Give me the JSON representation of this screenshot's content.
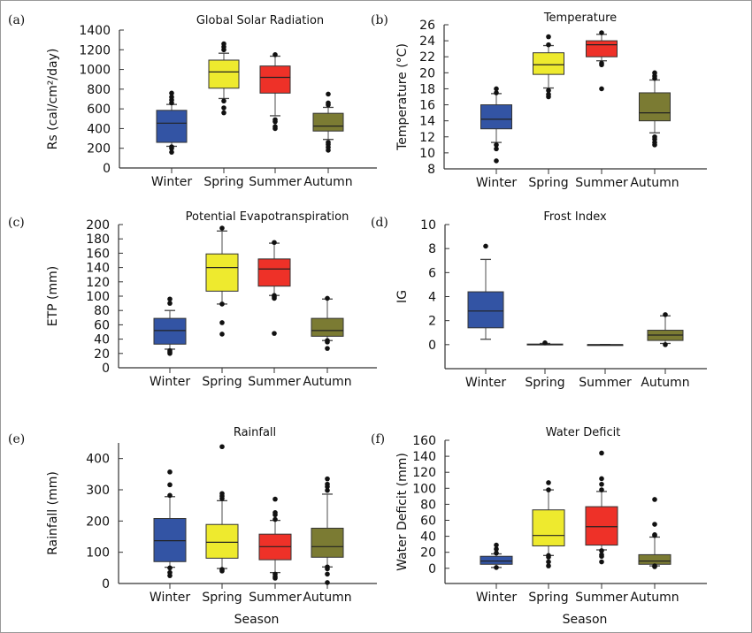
{
  "colors": {
    "Winter": "#3354a4",
    "Spring": "#eeea2e",
    "Summer": "#ee3128",
    "Autumn": "#7b7b33",
    "whisker": "#777777",
    "outlier": "#111111"
  },
  "chart_data": [
    {
      "panel": "(a)",
      "type": "box",
      "title": "Global Solar Radiation",
      "xlabel": "",
      "ylabel": "Rs (cal/cm²/day)",
      "categories": [
        "Winter",
        "Spring",
        "Summer",
        "Autumn"
      ],
      "ylim": [
        0,
        1400
      ],
      "yticks": [
        0,
        200,
        400,
        600,
        800,
        1000,
        1200,
        1400
      ],
      "boxes": [
        {
          "q1": 260,
          "median": 455,
          "q3": 585,
          "whisker_low": 220,
          "whisker_high": 645,
          "outliers": [
            160,
            200,
            215,
            660,
            690,
            720,
            760
          ]
        },
        {
          "q1": 810,
          "median": 975,
          "q3": 1095,
          "whisker_low": 705,
          "whisker_high": 1165,
          "outliers": [
            560,
            610,
            680,
            1200,
            1230,
            1260
          ]
        },
        {
          "q1": 760,
          "median": 920,
          "q3": 1035,
          "whisker_low": 530,
          "whisker_high": 1135,
          "outliers": [
            400,
            420,
            470,
            490,
            1150
          ]
        },
        {
          "q1": 375,
          "median": 425,
          "q3": 555,
          "whisker_low": 290,
          "whisker_high": 615,
          "outliers": [
            180,
            210,
            240,
            260,
            640,
            660,
            750
          ]
        }
      ]
    },
    {
      "panel": "(b)",
      "type": "box",
      "title": "Temperature",
      "xlabel": "",
      "ylabel": "Temperature (°C)",
      "categories": [
        "Winter",
        "Spring",
        "Summer",
        "Autumn"
      ],
      "ylim": [
        8,
        26
      ],
      "yticks": [
        8,
        10,
        12,
        14,
        16,
        18,
        20,
        22,
        24,
        26
      ],
      "boxes": [
        {
          "q1": 13,
          "median": 14.2,
          "q3": 16,
          "whisker_low": 11.3,
          "whisker_high": 17.4,
          "outliers": [
            9,
            10.5,
            11,
            17.5,
            18
          ]
        },
        {
          "q1": 19.8,
          "median": 21,
          "q3": 22.5,
          "whisker_low": 18.1,
          "whisker_high": 23.4,
          "outliers": [
            17,
            17.3,
            17.8,
            23.5,
            24.5
          ]
        },
        {
          "q1": 22,
          "median": 23.5,
          "q3": 24,
          "whisker_low": 21.5,
          "whisker_high": 24.8,
          "outliers": [
            18,
            21,
            21.2,
            25
          ]
        },
        {
          "q1": 14,
          "median": 15,
          "q3": 17.5,
          "whisker_low": 12.5,
          "whisker_high": 19.1,
          "outliers": [
            11,
            11.3,
            11.7,
            12,
            19.3,
            19.6,
            20
          ]
        }
      ]
    },
    {
      "panel": "(c)",
      "type": "box",
      "title": "Potential Evapotranspiration",
      "xlabel": "",
      "ylabel": "ETP (mm)",
      "categories": [
        "Winter",
        "Spring",
        "Summer",
        "Autumn"
      ],
      "ylim": [
        0,
        200
      ],
      "yticks": [
        0,
        20,
        40,
        60,
        80,
        100,
        120,
        140,
        160,
        180,
        200
      ],
      "boxes": [
        {
          "q1": 33,
          "median": 52,
          "q3": 69,
          "whisker_low": 26,
          "whisker_high": 80,
          "outliers": [
            20,
            22,
            24,
            90,
            96
          ]
        },
        {
          "q1": 107,
          "median": 140,
          "q3": 159,
          "whisker_low": 89,
          "whisker_high": 191,
          "outliers": [
            47,
            63,
            89,
            195
          ]
        },
        {
          "q1": 114,
          "median": 138,
          "q3": 152,
          "whisker_low": 101,
          "whisker_high": 174,
          "outliers": [
            48,
            97,
            99,
            101,
            175
          ]
        },
        {
          "q1": 44,
          "median": 52,
          "q3": 69,
          "whisker_low": 38,
          "whisker_high": 96,
          "outliers": [
            27,
            36,
            38,
            97
          ]
        }
      ]
    },
    {
      "panel": "(d)",
      "type": "box",
      "title": "Frost Index",
      "xlabel": "",
      "ylabel": "IG",
      "categories": [
        "Winter",
        "Spring",
        "Summer",
        "Autumn"
      ],
      "ylim": [
        -2,
        10
      ],
      "yticks": [
        0,
        2,
        4,
        6,
        8,
        10
      ],
      "boxes": [
        {
          "q1": 1.4,
          "median": 2.8,
          "q3": 4.4,
          "whisker_low": 0.45,
          "whisker_high": 7.1,
          "outliers": [
            8.2
          ]
        },
        {
          "q1": 0,
          "median": 0,
          "q3": 0.05,
          "whisker_low": 0,
          "whisker_high": 0.1,
          "outliers": [
            0.15
          ]
        },
        {
          "q1": 0,
          "median": 0,
          "q3": 0,
          "whisker_low": 0,
          "whisker_high": 0,
          "outliers": []
        },
        {
          "q1": 0.35,
          "median": 0.8,
          "q3": 1.2,
          "whisker_low": 0.1,
          "whisker_high": 2.4,
          "outliers": [
            0,
            2.5
          ]
        }
      ]
    },
    {
      "panel": "(e)",
      "type": "box",
      "title": "Rainfall",
      "xlabel": "Season",
      "ylabel": "Rainfall (mm)",
      "categories": [
        "Winter",
        "Spring",
        "Summer",
        "Autumn"
      ],
      "ylim": [
        0,
        450
      ],
      "yticks": [
        0,
        100,
        200,
        300,
        400
      ],
      "boxes": [
        {
          "q1": 70,
          "median": 137,
          "q3": 208,
          "whisker_low": 52,
          "whisker_high": 278,
          "outliers": [
            25,
            35,
            50,
            282,
            316,
            357
          ]
        },
        {
          "q1": 81,
          "median": 132,
          "q3": 189,
          "whisker_low": 48,
          "whisker_high": 265,
          "outliers": [
            40,
            45,
            272,
            280,
            288,
            438
          ]
        },
        {
          "q1": 76,
          "median": 118,
          "q3": 158,
          "whisker_low": 35,
          "whisker_high": 202,
          "outliers": [
            17,
            22,
            30,
            205,
            220,
            227,
            270
          ]
        },
        {
          "q1": 84,
          "median": 118,
          "q3": 177,
          "whisker_low": 53,
          "whisker_high": 286,
          "outliers": [
            3,
            30,
            47,
            53,
            298,
            310,
            318,
            335
          ]
        }
      ]
    },
    {
      "panel": "(f)",
      "type": "box",
      "title": "Water Deficit",
      "xlabel": "Season",
      "ylabel": "Water Deficit (mm)",
      "categories": [
        "Winter",
        "Spring",
        "Summer",
        "Autumn"
      ],
      "ylim": [
        -19,
        160
      ],
      "yticks": [
        0,
        20,
        40,
        60,
        80,
        100,
        120,
        140,
        160
      ],
      "boxes": [
        {
          "q1": 5,
          "median": 9,
          "q3": 15,
          "whisker_low": 1,
          "whisker_high": 18,
          "outliers": [
            1,
            19,
            24,
            29
          ]
        },
        {
          "q1": 28,
          "median": 41,
          "q3": 73,
          "whisker_low": 16,
          "whisker_high": 98,
          "outliers": [
            3,
            8,
            14,
            16,
            98,
            107
          ]
        },
        {
          "q1": 29,
          "median": 52,
          "q3": 77,
          "whisker_low": 23,
          "whisker_high": 96,
          "outliers": [
            8,
            15,
            17,
            22,
            98,
            105,
            112,
            144
          ]
        },
        {
          "q1": 5,
          "median": 9,
          "q3": 17,
          "whisker_low": 3,
          "whisker_high": 39,
          "outliers": [
            2,
            3,
            41,
            42,
            55,
            86
          ]
        }
      ]
    }
  ]
}
